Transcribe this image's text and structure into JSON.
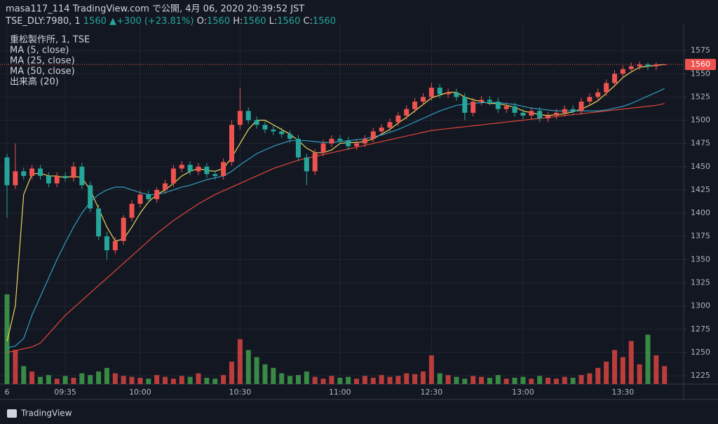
{
  "header": {
    "title": "masa117_114 TradingView.com で公開, 4月 06, 2020 20:39:52 JST",
    "symbol": "TSE_DLY:7980, 1",
    "price": 1560,
    "change": "▲+300 (+23.81%)",
    "ohlc": [
      {
        "label": "O:",
        "value": 1560
      },
      {
        "label": "H:",
        "value": 1560
      },
      {
        "label": "L:",
        "value": 1560
      },
      {
        "label": "C:",
        "value": 1560
      }
    ],
    "brand": "TradingView"
  },
  "chart_data": {
    "type": "candlestick",
    "title": "重松製作所, 1, TSE",
    "categories": [
      "6",
      null,
      null,
      null,
      null,
      null,
      null,
      "09:35",
      null,
      null,
      null,
      null,
      null,
      null,
      null,
      null,
      "10:00",
      null,
      null,
      null,
      null,
      null,
      null,
      null,
      null,
      null,
      null,
      null,
      "10:30",
      null,
      null,
      null,
      null,
      null,
      null,
      null,
      null,
      null,
      null,
      null,
      "11:00",
      null,
      null,
      null,
      null,
      null,
      null,
      null,
      null,
      null,
      null,
      "12:30",
      null,
      null,
      null,
      null,
      null,
      null,
      null,
      null,
      null,
      null,
      "13:00",
      null,
      null,
      null,
      null,
      null,
      null,
      null,
      null,
      null,
      null,
      null,
      "13:30",
      null,
      null,
      null,
      null,
      null
    ],
    "open": [
      1460,
      1430,
      1445,
      1440,
      1448,
      1440,
      1432,
      1440,
      1438,
      1450,
      1430,
      1405,
      1375,
      1360,
      1370,
      1395,
      1410,
      1420,
      1415,
      1425,
      1432,
      1448,
      1452,
      1445,
      1450,
      1442,
      1440,
      1455,
      1495,
      1510,
      1500,
      1495,
      1490,
      1488,
      1485,
      1480,
      1460,
      1445,
      1465,
      1475,
      1480,
      1478,
      1472,
      1475,
      1480,
      1488,
      1492,
      1498,
      1505,
      1512,
      1520,
      1525,
      1535,
      1528,
      1530,
      1525,
      1508,
      1520,
      1522,
      1520,
      1512,
      1515,
      1508,
      1505,
      1510,
      1502,
      1505,
      1508,
      1512,
      1510,
      1520,
      1525,
      1530,
      1540,
      1550,
      1555,
      1558,
      1560,
      1558,
      1560
    ],
    "high": [
      1464,
      1475,
      1449,
      1452,
      1452,
      1444,
      1444,
      1444,
      1455,
      1454,
      1434,
      1409,
      1380,
      1374,
      1398,
      1414,
      1424,
      1424,
      1428,
      1436,
      1452,
      1456,
      1456,
      1454,
      1454,
      1446,
      1459,
      1500,
      1535,
      1514,
      1504,
      1499,
      1494,
      1492,
      1489,
      1484,
      1464,
      1469,
      1479,
      1484,
      1484,
      1482,
      1479,
      1484,
      1492,
      1496,
      1502,
      1509,
      1516,
      1524,
      1529,
      1540,
      1539,
      1534,
      1534,
      1529,
      1524,
      1526,
      1526,
      1524,
      1519,
      1519,
      1512,
      1514,
      1514,
      1509,
      1512,
      1516,
      1516,
      1524,
      1529,
      1534,
      1544,
      1554,
      1559,
      1562,
      1563,
      1562,
      1562,
      1560
    ],
    "low": [
      1395,
      1426,
      1436,
      1436,
      1436,
      1428,
      1428,
      1434,
      1434,
      1426,
      1401,
      1371,
      1350,
      1356,
      1366,
      1391,
      1406,
      1411,
      1411,
      1421,
      1428,
      1444,
      1441,
      1441,
      1438,
      1436,
      1436,
      1451,
      1490,
      1496,
      1491,
      1486,
      1484,
      1481,
      1476,
      1456,
      1430,
      1441,
      1461,
      1471,
      1474,
      1468,
      1468,
      1471,
      1476,
      1484,
      1488,
      1494,
      1501,
      1508,
      1516,
      1521,
      1524,
      1524,
      1521,
      1500,
      1504,
      1516,
      1516,
      1508,
      1508,
      1504,
      1501,
      1501,
      1498,
      1498,
      1501,
      1504,
      1506,
      1506,
      1516,
      1521,
      1526,
      1536,
      1546,
      1551,
      1554,
      1554,
      1554,
      1560
    ],
    "close": [
      1430,
      1445,
      1440,
      1448,
      1440,
      1432,
      1440,
      1438,
      1450,
      1430,
      1405,
      1375,
      1360,
      1370,
      1395,
      1410,
      1420,
      1415,
      1425,
      1432,
      1448,
      1452,
      1445,
      1450,
      1442,
      1440,
      1455,
      1495,
      1510,
      1500,
      1495,
      1490,
      1488,
      1485,
      1480,
      1460,
      1445,
      1465,
      1475,
      1480,
      1478,
      1472,
      1475,
      1480,
      1488,
      1492,
      1498,
      1505,
      1512,
      1520,
      1525,
      1535,
      1528,
      1530,
      1525,
      1508,
      1520,
      1522,
      1520,
      1512,
      1515,
      1508,
      1505,
      1510,
      1502,
      1505,
      1508,
      1512,
      1510,
      1520,
      1525,
      1530,
      1540,
      1550,
      1555,
      1558,
      1560,
      1558,
      1560,
      1560
    ],
    "up_color": "#ef5350",
    "down_color": "#26a69a",
    "indicators": [
      {
        "name": "MA (5, close)",
        "color": "#e8d85a",
        "values": [
          1262,
          1300,
          1420,
          1442,
          1443,
          1440,
          1440,
          1438,
          1440,
          1438,
          1425,
          1405,
          1385,
          1370,
          1372,
          1385,
          1400,
          1412,
          1420,
          1425,
          1432,
          1440,
          1445,
          1448,
          1446,
          1445,
          1448,
          1460,
          1475,
          1490,
          1500,
          1500,
          1495,
          1490,
          1485,
          1478,
          1470,
          1465,
          1465,
          1468,
          1475,
          1476,
          1476,
          1477,
          1480,
          1485,
          1490,
          1497,
          1503,
          1510,
          1517,
          1524,
          1527,
          1530,
          1530,
          1525,
          1522,
          1520,
          1518,
          1518,
          1516,
          1514,
          1510,
          1508,
          1506,
          1505,
          1506,
          1507,
          1509,
          1512,
          1516,
          1521,
          1529,
          1537,
          1546,
          1552,
          1557,
          1558,
          1559,
          1560
        ]
      },
      {
        "name": "MA (25, close)",
        "color": "#2f9fc4",
        "values": [
          1255,
          1257,
          1265,
          1290,
          1310,
          1330,
          1350,
          1368,
          1385,
          1400,
          1412,
          1420,
          1425,
          1428,
          1428,
          1425,
          1422,
          1420,
          1420,
          1422,
          1425,
          1428,
          1430,
          1433,
          1436,
          1438,
          1440,
          1445,
          1452,
          1458,
          1464,
          1468,
          1472,
          1475,
          1478,
          1478,
          1478,
          1477,
          1476,
          1476,
          1477,
          1478,
          1479,
          1480,
          1482,
          1484,
          1487,
          1490,
          1494,
          1498,
          1502,
          1506,
          1510,
          1513,
          1516,
          1517,
          1518,
          1519,
          1519,
          1519,
          1518,
          1517,
          1515,
          1513,
          1512,
          1511,
          1510,
          1510,
          1510,
          1510,
          1510,
          1510,
          1511,
          1513,
          1515,
          1518,
          1522,
          1526,
          1530,
          1534
        ]
      },
      {
        "name": "MA (50, close)",
        "color": "#e0463a",
        "values": [
          1250,
          1252,
          1254,
          1256,
          1260,
          1270,
          1280,
          1290,
          1298,
          1306,
          1314,
          1322,
          1330,
          1338,
          1346,
          1354,
          1362,
          1370,
          1378,
          1385,
          1392,
          1398,
          1404,
          1410,
          1415,
          1420,
          1424,
          1428,
          1432,
          1436,
          1440,
          1444,
          1448,
          1451,
          1454,
          1457,
          1459,
          1461,
          1463,
          1465,
          1467,
          1469,
          1471,
          1473,
          1475,
          1477,
          1479,
          1481,
          1483,
          1485,
          1487,
          1489,
          1490,
          1491,
          1492,
          1493,
          1494,
          1495,
          1496,
          1497,
          1498,
          1499,
          1500,
          1501,
          1502,
          1503,
          1504,
          1505,
          1506,
          1507,
          1508,
          1509,
          1510,
          1511,
          1512,
          1513,
          1514,
          1515,
          1516,
          1518
        ]
      }
    ],
    "volume": {
      "name": "出来高 (20)",
      "up_color": "#d9443f",
      "down_color": "#3f9f4a",
      "values": [
        100,
        38,
        20,
        14,
        8,
        10,
        6,
        9,
        7,
        12,
        10,
        14,
        18,
        12,
        9,
        8,
        7,
        6,
        10,
        8,
        6,
        9,
        8,
        12,
        7,
        6,
        10,
        25,
        50,
        38,
        30,
        22,
        18,
        12,
        9,
        10,
        14,
        8,
        6,
        9,
        7,
        8,
        6,
        9,
        7,
        10,
        8,
        9,
        12,
        11,
        14,
        32,
        12,
        10,
        8,
        6,
        9,
        8,
        7,
        10,
        6,
        7,
        8,
        6,
        9,
        7,
        6,
        8,
        7,
        10,
        12,
        18,
        25,
        38,
        30,
        48,
        22,
        55,
        32,
        20
      ]
    },
    "last_price": 1560,
    "last_color": "#ef5350",
    "ylim": [
      1216,
      1603
    ],
    "yticks": [
      1225,
      1250,
      1275,
      1300,
      1325,
      1350,
      1375,
      1400,
      1425,
      1450,
      1475,
      1500,
      1525,
      1550,
      1575
    ],
    "grid": true
  }
}
